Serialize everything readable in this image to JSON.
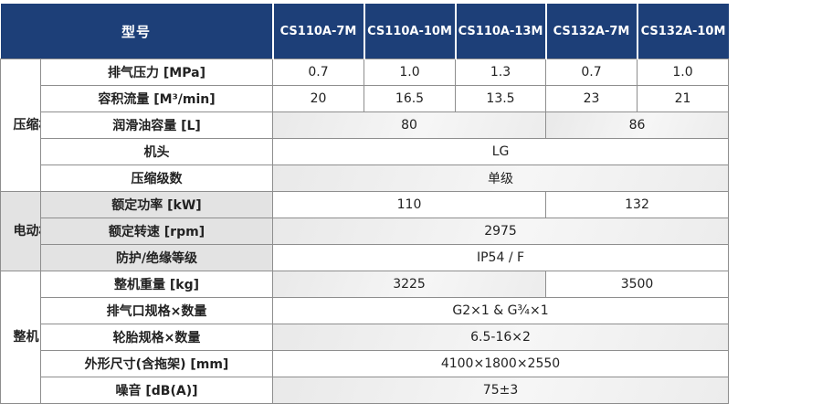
{
  "header": {
    "model_label": "型号",
    "models": [
      "CS110A-7M",
      "CS110A-10M",
      "CS110A-13M",
      "CS132A-7M",
      "CS132A-10M"
    ]
  },
  "groups": {
    "compressor": "压缩机",
    "motor": "电动机",
    "machine": "整机"
  },
  "rows": {
    "discharge_pressure": {
      "label": "排气压力 [MPa]",
      "values": [
        "0.7",
        "1.0",
        "1.3",
        "0.7",
        "1.0"
      ]
    },
    "displacement": {
      "label": "容积流量 [M³/min]",
      "values": [
        "20",
        "16.5",
        "13.5",
        "23",
        "21"
      ]
    },
    "oil_capacity": {
      "label": "润滑油容量 [L]",
      "values": [
        "80",
        "86"
      ]
    },
    "airend": {
      "label": "机头",
      "value": "LG"
    },
    "stages": {
      "label": "压缩级数",
      "value": "单级"
    },
    "rated_power": {
      "label": "额定功率 [kW]",
      "values": [
        "110",
        "132"
      ]
    },
    "rated_speed": {
      "label": "额定转速 [rpm]",
      "value": "2975"
    },
    "protection": {
      "label": "防护/绝缘等级",
      "value": "IP54 / F"
    },
    "weight": {
      "label": "整机重量 [kg]",
      "values": [
        "3225",
        "3500"
      ]
    },
    "outlet": {
      "label": "排气口规格×数量",
      "value": "G2×1 & G¾×1"
    },
    "tire": {
      "label": "轮胎规格×数量",
      "value": "6.5-16×2"
    },
    "dimensions": {
      "label": "外形尺寸(含拖架) [mm]",
      "value": "4100×1800×2550"
    },
    "noise": {
      "label": "噪音 [dB(A)]",
      "value": "75±3"
    }
  }
}
